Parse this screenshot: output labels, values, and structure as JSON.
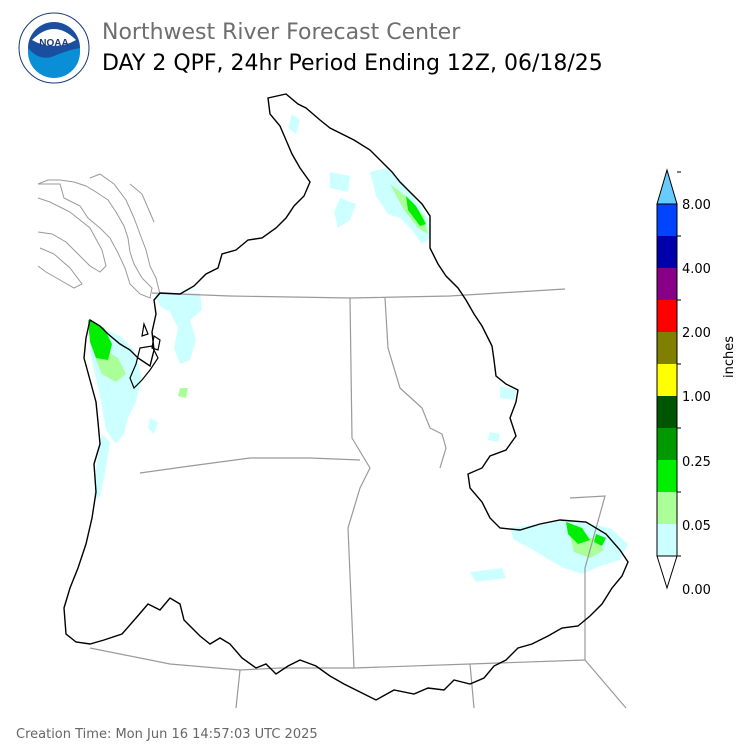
{
  "header": {
    "org_title": "Northwest River Forecast Center",
    "product_title": "DAY 2 QPF, 24hr Period Ending 12Z, 06/18/25"
  },
  "logo": {
    "label": "NOAA",
    "icon": "noaa-logo-icon",
    "ring_text": "NATIONAL OCEANIC AND ATMOSPHERIC ADMINISTRATION · U.S. DEPARTMENT OF COMMERCE"
  },
  "legend": {
    "unit_label": "inches",
    "ticks": [
      "0.00",
      "0.05",
      "0.25",
      "1.00",
      "2.00",
      "4.00",
      "8.00"
    ],
    "colors": [
      "#ffffff",
      "#ccffff",
      "#aaff99",
      "#00ee00",
      "#009900",
      "#005500",
      "#ffff00",
      "#808000",
      "#ff0000",
      "#880088",
      "#0000aa",
      "#0044ff",
      "#66ccff"
    ]
  },
  "footer": {
    "creation_time": "Creation Time: Mon Jun 16 14:57:03 UTC 2025"
  }
}
